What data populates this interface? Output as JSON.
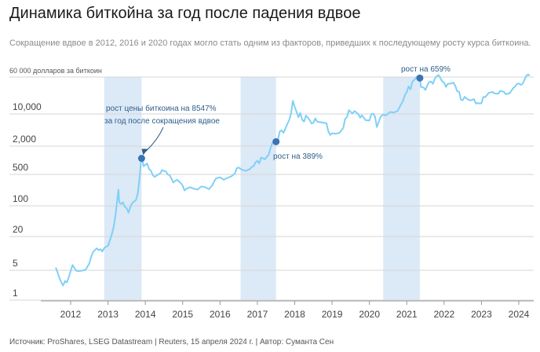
{
  "header": {
    "title": "Динамика биткойна за год после падения вдвое",
    "subtitle": "Сокращение вдвое в 2012, 2016 и 2020 годах могло стать одним из факторов, приведших к последующему росту курса биткоина."
  },
  "footer": {
    "source": "Источник: ProShares, LSEG Datastream | Reuters, 15 апреля 2024 г. | Автор: Суманта Сен"
  },
  "colors": {
    "line": "#7fd0f7",
    "band": "#dce9f6",
    "marker": "#3a74b3",
    "annotation": "#2f5f8a"
  },
  "chart_data": {
    "type": "line",
    "title": "Динамика биткойна за год после падения вдвое",
    "ylabel": "60 000 долларов за биткоин",
    "yscale": "log",
    "ylim": [
      1,
      60000
    ],
    "xlim": [
      2011.55,
      2024.45
    ],
    "grid": "horizontal",
    "x_ticks": [
      "2012",
      "2013",
      "2014",
      "2015",
      "2016",
      "2017",
      "2018",
      "2019",
      "2020",
      "2021",
      "2022",
      "2023",
      "2024"
    ],
    "y_ticks": [
      {
        "value": 60000,
        "label": "60 000 долларов за биткоин"
      },
      {
        "value": 10000,
        "label": "10,000"
      },
      {
        "value": 2000,
        "label": "2,000"
      },
      {
        "value": 500,
        "label": "500"
      },
      {
        "value": 100,
        "label": "100"
      },
      {
        "value": 20,
        "label": "20"
      },
      {
        "value": 5,
        "label": "5"
      },
      {
        "value": 1,
        "label": "1"
      }
    ],
    "halving_periods": [
      [
        2012.9,
        2013.9
      ],
      [
        2016.55,
        2017.5
      ],
      [
        2020.37,
        2021.35
      ]
    ],
    "series": [
      {
        "points": [
          [
            2011.6,
            5.6
          ],
          [
            2011.65,
            4.5
          ],
          [
            2011.7,
            3.3
          ],
          [
            2011.75,
            2.6
          ],
          [
            2011.8,
            2.2
          ],
          [
            2011.85,
            2.8
          ],
          [
            2011.9,
            2.6
          ],
          [
            2011.95,
            3.4
          ],
          [
            2012.0,
            4.8
          ],
          [
            2012.05,
            6.2
          ],
          [
            2012.1,
            5.5
          ],
          [
            2012.15,
            4.9
          ],
          [
            2012.2,
            4.8
          ],
          [
            2012.3,
            4.9
          ],
          [
            2012.4,
            5.1
          ],
          [
            2012.5,
            6.6
          ],
          [
            2012.55,
            8.8
          ],
          [
            2012.6,
            10.5
          ],
          [
            2012.65,
            11.5
          ],
          [
            2012.7,
            12.3
          ],
          [
            2012.75,
            11.4
          ],
          [
            2012.8,
            11.9
          ],
          [
            2012.85,
            10.8
          ],
          [
            2012.9,
            12.4
          ],
          [
            2012.95,
            13.3
          ],
          [
            2013.0,
            13.5
          ],
          [
            2013.05,
            17
          ],
          [
            2013.1,
            22
          ],
          [
            2013.15,
            32
          ],
          [
            2013.2,
            60
          ],
          [
            2013.25,
            140
          ],
          [
            2013.28,
            230
          ],
          [
            2013.3,
            120
          ],
          [
            2013.35,
            110
          ],
          [
            2013.4,
            120
          ],
          [
            2013.45,
            95
          ],
          [
            2013.5,
            88
          ],
          [
            2013.55,
            70
          ],
          [
            2013.6,
            95
          ],
          [
            2013.65,
            115
          ],
          [
            2013.7,
            125
          ],
          [
            2013.75,
            135
          ],
          [
            2013.8,
            190
          ],
          [
            2013.85,
            450
          ],
          [
            2013.88,
            880
          ],
          [
            2013.92,
            1100
          ],
          [
            2013.95,
            750
          ],
          [
            2014.0,
            800
          ],
          [
            2014.05,
            850
          ],
          [
            2014.1,
            650
          ],
          [
            2014.15,
            600
          ],
          [
            2014.2,
            480
          ],
          [
            2014.25,
            440
          ],
          [
            2014.3,
            470
          ],
          [
            2014.4,
            530
          ],
          [
            2014.45,
            620
          ],
          [
            2014.5,
            590
          ],
          [
            2014.55,
            580
          ],
          [
            2014.6,
            500
          ],
          [
            2014.65,
            480
          ],
          [
            2014.7,
            400
          ],
          [
            2014.75,
            330
          ],
          [
            2014.8,
            360
          ],
          [
            2014.85,
            380
          ],
          [
            2014.95,
            320
          ],
          [
            2015.0,
            280
          ],
          [
            2015.05,
            220
          ],
          [
            2015.1,
            240
          ],
          [
            2015.2,
            260
          ],
          [
            2015.3,
            240
          ],
          [
            2015.4,
            230
          ],
          [
            2015.5,
            270
          ],
          [
            2015.6,
            260
          ],
          [
            2015.7,
            235
          ],
          [
            2015.8,
            290
          ],
          [
            2015.85,
            360
          ],
          [
            2015.9,
            410
          ],
          [
            2016.0,
            430
          ],
          [
            2016.1,
            380
          ],
          [
            2016.2,
            420
          ],
          [
            2016.3,
            450
          ],
          [
            2016.4,
            530
          ],
          [
            2016.45,
            680
          ],
          [
            2016.5,
            700
          ],
          [
            2016.6,
            620
          ],
          [
            2016.7,
            600
          ],
          [
            2016.8,
            650
          ],
          [
            2016.85,
            720
          ],
          [
            2016.9,
            750
          ],
          [
            2016.95,
            900
          ],
          [
            2017.0,
            980
          ],
          [
            2017.05,
            860
          ],
          [
            2017.1,
            1150
          ],
          [
            2017.2,
            1050
          ],
          [
            2017.3,
            1300
          ],
          [
            2017.35,
            1800
          ],
          [
            2017.4,
            2300
          ],
          [
            2017.45,
            2600
          ],
          [
            2017.5,
            2500
          ],
          [
            2017.55,
            2750
          ],
          [
            2017.6,
            4200
          ],
          [
            2017.65,
            4400
          ],
          [
            2017.7,
            3900
          ],
          [
            2017.75,
            4800
          ],
          [
            2017.8,
            6000
          ],
          [
            2017.85,
            7300
          ],
          [
            2017.9,
            10000
          ],
          [
            2017.95,
            19000
          ],
          [
            2018.0,
            14000
          ],
          [
            2018.05,
            11000
          ],
          [
            2018.1,
            8500
          ],
          [
            2018.15,
            10500
          ],
          [
            2018.2,
            7500
          ],
          [
            2018.25,
            6800
          ],
          [
            2018.3,
            9200
          ],
          [
            2018.35,
            8300
          ],
          [
            2018.4,
            7400
          ],
          [
            2018.45,
            6200
          ],
          [
            2018.5,
            6400
          ],
          [
            2018.55,
            8000
          ],
          [
            2018.6,
            6800
          ],
          [
            2018.7,
            6600
          ],
          [
            2018.8,
            6400
          ],
          [
            2018.85,
            6300
          ],
          [
            2018.9,
            4200
          ],
          [
            2018.95,
            3500
          ],
          [
            2019.0,
            3800
          ],
          [
            2019.1,
            3700
          ],
          [
            2019.2,
            3900
          ],
          [
            2019.3,
            5000
          ],
          [
            2019.35,
            7800
          ],
          [
            2019.4,
            8500
          ],
          [
            2019.45,
            12000
          ],
          [
            2019.5,
            11000
          ],
          [
            2019.55,
            10200
          ],
          [
            2019.6,
            11500
          ],
          [
            2019.7,
            10000
          ],
          [
            2019.75,
            8300
          ],
          [
            2019.8,
            9300
          ],
          [
            2019.9,
            7300
          ],
          [
            2020.0,
            7200
          ],
          [
            2020.05,
            9800
          ],
          [
            2020.1,
            10200
          ],
          [
            2020.15,
            8800
          ],
          [
            2020.2,
            5200
          ],
          [
            2020.25,
            6800
          ],
          [
            2020.3,
            8700
          ],
          [
            2020.35,
            9500
          ],
          [
            2020.45,
            9400
          ],
          [
            2020.55,
            11000
          ],
          [
            2020.65,
            10700
          ],
          [
            2020.75,
            11500
          ],
          [
            2020.8,
            13500
          ],
          [
            2020.85,
            16000
          ],
          [
            2020.9,
            19000
          ],
          [
            2020.95,
            25000
          ],
          [
            2021.0,
            29000
          ],
          [
            2021.05,
            38000
          ],
          [
            2021.1,
            33000
          ],
          [
            2021.15,
            48000
          ],
          [
            2021.2,
            52000
          ],
          [
            2021.25,
            58000
          ],
          [
            2021.3,
            63000
          ],
          [
            2021.35,
            57000
          ],
          [
            2021.38,
            37000
          ],
          [
            2021.45,
            36000
          ],
          [
            2021.5,
            32000
          ],
          [
            2021.55,
            40000
          ],
          [
            2021.6,
            47000
          ],
          [
            2021.65,
            48000
          ],
          [
            2021.7,
            43000
          ],
          [
            2021.75,
            55000
          ],
          [
            2021.8,
            62000
          ],
          [
            2021.85,
            66000
          ],
          [
            2021.9,
            57000
          ],
          [
            2021.95,
            48000
          ],
          [
            2022.0,
            46000
          ],
          [
            2022.05,
            37000
          ],
          [
            2022.1,
            43000
          ],
          [
            2022.2,
            44000
          ],
          [
            2022.25,
            46000
          ],
          [
            2022.3,
            39000
          ],
          [
            2022.35,
            30000
          ],
          [
            2022.4,
            29500
          ],
          [
            2022.45,
            20000
          ],
          [
            2022.5,
            19500
          ],
          [
            2022.55,
            23000
          ],
          [
            2022.6,
            21000
          ],
          [
            2022.7,
            19200
          ],
          [
            2022.8,
            20500
          ],
          [
            2022.85,
            16500
          ],
          [
            2022.9,
            17000
          ],
          [
            2022.95,
            16600
          ],
          [
            2023.0,
            16800
          ],
          [
            2023.05,
            23000
          ],
          [
            2023.1,
            22500
          ],
          [
            2023.2,
            28000
          ],
          [
            2023.3,
            29000
          ],
          [
            2023.35,
            27000
          ],
          [
            2023.45,
            26500
          ],
          [
            2023.5,
            30500
          ],
          [
            2023.6,
            29300
          ],
          [
            2023.65,
            26000
          ],
          [
            2023.75,
            27000
          ],
          [
            2023.85,
            35000
          ],
          [
            2023.9,
            37500
          ],
          [
            2023.95,
            42500
          ],
          [
            2024.0,
            44000
          ],
          [
            2024.05,
            41000
          ],
          [
            2024.1,
            43000
          ],
          [
            2024.15,
            52000
          ],
          [
            2024.2,
            63000
          ],
          [
            2024.25,
            68000
          ],
          [
            2024.29,
            64000
          ]
        ]
      }
    ],
    "markers": [
      {
        "x": 2013.9,
        "y": 1100,
        "label": "рост цены биткоина на 8547% за год после сокращения вдвое"
      },
      {
        "x": 2017.5,
        "y": 2500,
        "label": "рост на 389%"
      },
      {
        "x": 2021.35,
        "y": 57000,
        "label": "рост на 659%"
      }
    ]
  },
  "annotations": {
    "a1_line1": "рост цены биткоина на 8547%",
    "a1_line2": "за год после сокращения вдвое",
    "a2": "рост на 389%",
    "a3": "рост на 659%"
  }
}
